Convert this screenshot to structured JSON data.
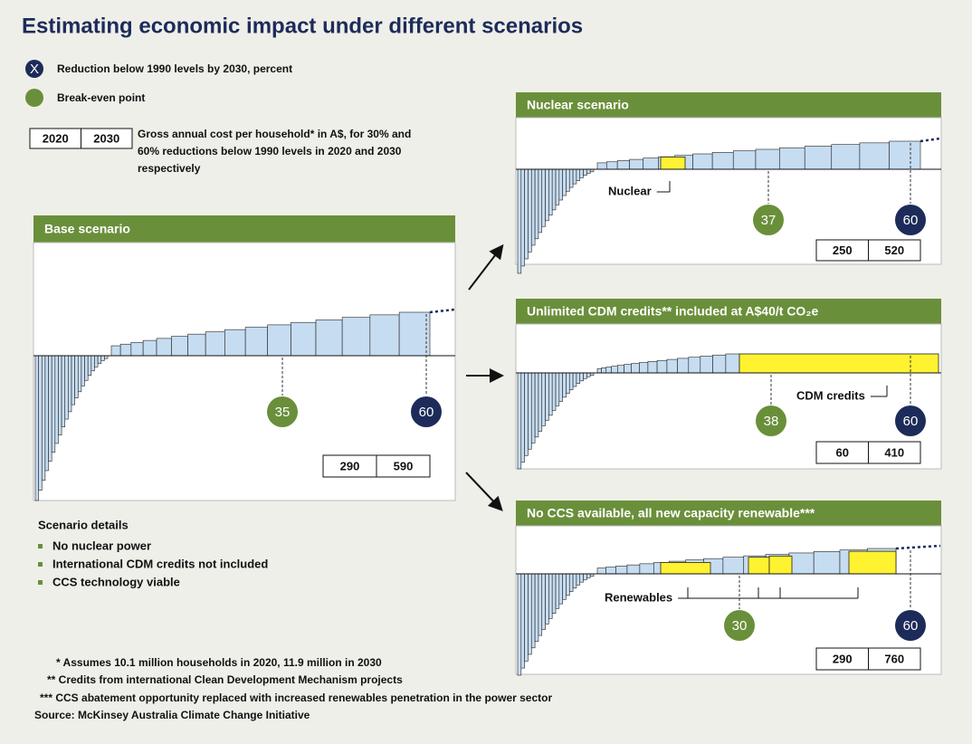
{
  "title": "Estimating economic impact under different scenarios",
  "legend": {
    "reduction": {
      "marker": "X",
      "label": "Reduction below 1990 levels by 2030, percent"
    },
    "breakeven": {
      "label": "Break-even point"
    },
    "cost": {
      "years": [
        "2020",
        "2030"
      ],
      "label": [
        "Gross annual cost per household* in A$, for 30% and",
        "60% reductions below 1990 levels in 2020 and 2030",
        "respectively"
      ]
    }
  },
  "panels": [
    {
      "title": "Base scenario",
      "breakeven": 35,
      "reduction": 60,
      "costs": [
        290,
        590
      ]
    },
    {
      "title": "Nuclear scenario",
      "breakeven": 37,
      "reduction": 60,
      "costs": [
        250,
        520
      ],
      "label": "Nuclear"
    },
    {
      "title": "Unlimited CDM credits** included at A$40/t CO₂e",
      "breakeven": 38,
      "reduction": 60,
      "costs": [
        60,
        410
      ],
      "label": "CDM credits"
    },
    {
      "title": "No CCS available, all new capacity renewable***",
      "breakeven": 30,
      "reduction": 60,
      "costs": [
        290,
        760
      ],
      "label": "Renewables"
    }
  ],
  "scenario_details": {
    "title": "Scenario details",
    "items": [
      "No nuclear power",
      "International CDM credits not included",
      "CCS technology viable"
    ]
  },
  "footnotes": [
    "* Assumes 10.1 million households in 2020, 11.9 million in 2030",
    "** Credits from international Clean Development Mechanism projects",
    "*** CCS abatement opportunity replaced with increased renewables penetration in the power sector"
  ],
  "source": "Source: McKinsey Australia Climate Change Initiative"
}
